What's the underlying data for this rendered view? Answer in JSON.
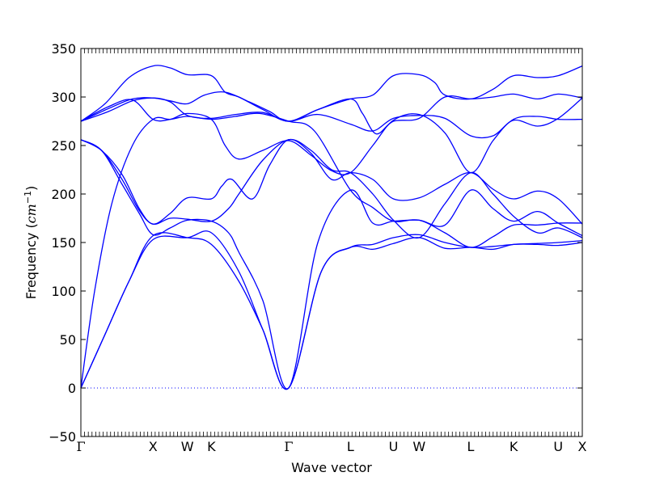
{
  "chart_data": {
    "type": "line",
    "title": "",
    "xlabel": "Wave vector",
    "ylabel_prefix": "Frequency (",
    "ylabel_unit": "cm",
    "ylabel_exp": "−1",
    "ylabel_suffix": ")",
    "ylim": [
      -50,
      350
    ],
    "yticks": [
      -50,
      0,
      50,
      100,
      150,
      200,
      250,
      300,
      350
    ],
    "ytick_labels": [
      "−50",
      "0",
      "50",
      "100",
      "150",
      "200",
      "250",
      "300",
      "350"
    ],
    "xlim": [
      0,
      14.6
    ],
    "high_symmetry_points": [
      {
        "label": "Γ",
        "x": 0
      },
      {
        "label": "X",
        "x": 2.1
      },
      {
        "label": "W",
        "x": 3.1
      },
      {
        "label": "K",
        "x": 3.8
      },
      {
        "label": "Γ",
        "x": 6.05
      },
      {
        "label": "L",
        "x": 7.85
      },
      {
        "label": "U",
        "x": 9.1
      },
      {
        "label": "W",
        "x": 9.85
      },
      {
        "label": "L",
        "x": 11.35
      },
      {
        "label": "K",
        "x": 12.6
      },
      {
        "label": "U",
        "x": 13.9
      },
      {
        "label": "X",
        "x": 14.6
      }
    ],
    "zero_line": {
      "y": 0,
      "style": "dotted",
      "color": "#0000ff"
    },
    "line_color": "#0000ff",
    "grid": false,
    "series": [
      {
        "x": [
          0,
          0.7,
          1.4,
          2.1,
          3.1,
          3.8,
          4.6,
          5.3,
          6.05,
          7.0,
          7.85,
          8.5,
          9.1,
          9.85,
          10.6,
          11.35,
          12.0,
          12.6,
          13.3,
          13.9,
          14.6
        ],
        "values": [
          0,
          55,
          110,
          157,
          155,
          148,
          110,
          60,
          0,
          120,
          145,
          148,
          155,
          158,
          150,
          145,
          146,
          148,
          149,
          150,
          152
        ]
      },
      {
        "x": [
          0,
          0.7,
          1.4,
          2.1,
          3.1,
          3.8,
          4.6,
          5.3,
          6.05,
          7.0,
          7.85,
          8.5,
          9.1,
          9.85,
          10.6,
          11.35,
          12.0,
          12.6,
          13.3,
          13.9,
          14.6
        ],
        "values": [
          0,
          55,
          110,
          153,
          155,
          160,
          120,
          60,
          0,
          120,
          145,
          143,
          149,
          155,
          144,
          145,
          143,
          148,
          148,
          147,
          150
        ]
      },
      {
        "x": [
          0,
          0.4,
          0.9,
          1.5,
          2.1,
          2.6,
          3.1,
          3.8,
          4.5,
          5.2,
          6.05,
          6.8,
          7.85,
          8.5,
          9.1,
          9.85,
          10.6,
          11.35,
          12.0,
          12.6,
          13.3,
          13.9,
          14.6
        ],
        "values": [
          0,
          100,
          190,
          250,
          277,
          277,
          280,
          277,
          280,
          283,
          275,
          265,
          204,
          186,
          172,
          173,
          160,
          145,
          156,
          168,
          168,
          170,
          170
        ]
      },
      {
        "x": [
          0,
          0.6,
          1.2,
          1.7,
          2.1,
          2.6,
          3.1,
          3.8,
          4.3,
          4.6,
          5.3,
          6.05,
          6.9,
          7.85,
          8.5,
          9.1,
          9.85,
          10.6,
          11.35,
          12.0,
          12.6,
          13.3,
          13.9,
          14.6
        ],
        "values": [
          256,
          245,
          210,
          180,
          158,
          165,
          173,
          172,
          160,
          140,
          90,
          0,
          150,
          204,
          170,
          172,
          173,
          168,
          204,
          185,
          172,
          182,
          170,
          157
        ]
      },
      {
        "x": [
          0,
          0.6,
          1.2,
          1.7,
          2.1,
          2.6,
          3.1,
          3.8,
          4.3,
          4.6,
          5.3,
          6.05,
          6.7,
          7.3,
          7.85,
          8.5,
          9.1,
          9.85,
          10.6,
          11.35,
          12.0,
          12.6,
          13.3,
          13.9,
          14.6
        ],
        "values": [
          256,
          245,
          215,
          183,
          169,
          175,
          174,
          172,
          185,
          200,
          235,
          256,
          245,
          225,
          222,
          200,
          173,
          155,
          190,
          222,
          200,
          177,
          160,
          165,
          155
        ]
      },
      {
        "x": [
          0,
          0.6,
          1.2,
          1.7,
          2.1,
          2.6,
          3.1,
          3.8,
          4.1,
          4.4,
          5.0,
          5.5,
          6.05,
          6.7,
          7.3,
          7.85,
          8.5,
          9.1,
          9.85,
          10.6,
          11.35,
          12.0,
          12.6,
          13.3,
          13.9,
          14.6
        ],
        "values": [
          256,
          245,
          220,
          185,
          169,
          180,
          196,
          195,
          208,
          215,
          195,
          230,
          256,
          242,
          215,
          222,
          215,
          195,
          196,
          210,
          222,
          205,
          195,
          203,
          195,
          169
        ]
      },
      {
        "x": [
          0,
          0.8,
          1.5,
          2.1,
          2.6,
          3.1,
          3.8,
          4.2,
          4.6,
          5.3,
          6.05,
          6.7,
          7.3,
          7.85,
          8.5,
          9.1,
          9.85,
          10.6,
          11.35,
          12.0,
          12.6,
          13.3,
          13.9,
          14.6
        ],
        "values": [
          275,
          290,
          297,
          277,
          277,
          283,
          277,
          250,
          236,
          245,
          255,
          240,
          224,
          222,
          250,
          276,
          282,
          263,
          222,
          255,
          277,
          280,
          277,
          277
        ]
      },
      {
        "x": [
          0,
          0.8,
          1.5,
          2.1,
          2.6,
          3.1,
          3.8,
          4.5,
          5.3,
          6.05,
          6.9,
          7.85,
          8.5,
          9.1,
          9.85,
          10.6,
          11.35,
          12.0,
          12.6,
          13.3,
          13.9,
          14.6
        ],
        "values": [
          275,
          285,
          296,
          299,
          295,
          281,
          278,
          282,
          284,
          275,
          282,
          272,
          265,
          278,
          281,
          278,
          260,
          260,
          276,
          270,
          278,
          299
        ]
      },
      {
        "x": [
          0,
          0.8,
          1.5,
          2.1,
          2.6,
          3.1,
          3.6,
          4.2,
          4.9,
          5.5,
          6.05,
          6.9,
          7.85,
          8.2,
          8.6,
          9.1,
          9.85,
          10.6,
          11.35,
          12.0,
          12.6,
          13.3,
          13.9,
          14.6
        ],
        "values": [
          275,
          288,
          298,
          299,
          296,
          293,
          302,
          305,
          295,
          285,
          275,
          287,
          298,
          283,
          262,
          275,
          278,
          300,
          298,
          300,
          303,
          298,
          303,
          299
        ]
      },
      {
        "x": [
          0,
          0.7,
          1.4,
          2.1,
          2.6,
          3.1,
          3.8,
          4.2,
          4.6,
          5.3,
          6.05,
          6.9,
          7.85,
          8.5,
          9.1,
          9.85,
          10.3,
          10.6,
          11.35,
          12.0,
          12.6,
          13.3,
          13.9,
          14.6
        ],
        "values": [
          275,
          293,
          320,
          332,
          330,
          323,
          322,
          305,
          300,
          287,
          275,
          287,
          298,
          302,
          322,
          323,
          315,
          302,
          298,
          308,
          322,
          320,
          322,
          332
        ]
      }
    ]
  }
}
